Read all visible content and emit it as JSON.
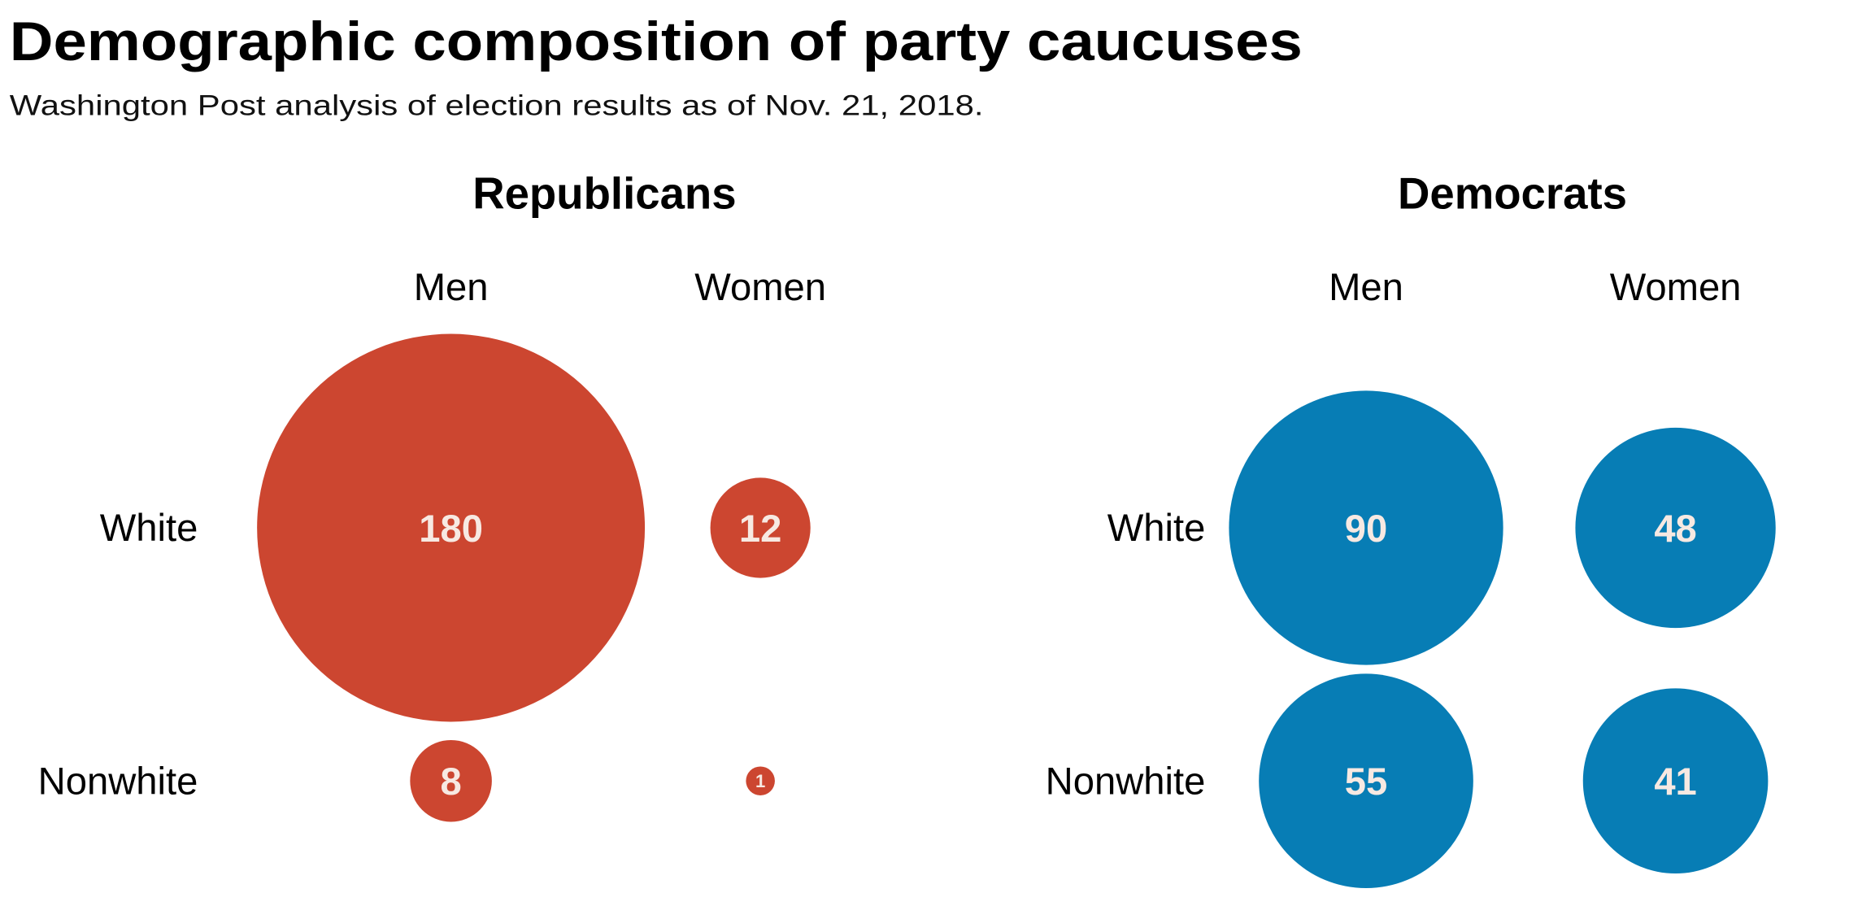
{
  "title": "Demographic composition of party caucuses",
  "subtitle": "Washington Post analysis of election results as of Nov. 21, 2018.",
  "chart_data": [
    {
      "type": "bubble-grid",
      "title": "Republicans",
      "color": "#cc4630",
      "columns": [
        "Men",
        "Women"
      ],
      "rows": [
        "White",
        "Nonwhite"
      ],
      "values": [
        [
          180,
          12
        ],
        [
          8,
          1
        ]
      ]
    },
    {
      "type": "bubble-grid",
      "title": "Democrats",
      "color": "#077db5",
      "columns": [
        "Men",
        "Women"
      ],
      "rows": [
        "White",
        "Nonwhite"
      ],
      "values": [
        [
          90,
          48
        ],
        [
          55,
          41
        ]
      ]
    }
  ]
}
